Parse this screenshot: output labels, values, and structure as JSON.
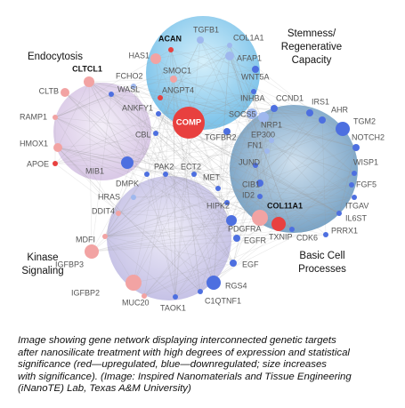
{
  "groups": [
    {
      "lines": [
        "Endocytosis"
      ]
    },
    {
      "lines": [
        "Stemness/",
        "Regenerative",
        "Capacity"
      ]
    },
    {
      "lines": [
        "Kinase",
        "Signaling"
      ]
    },
    {
      "lines": [
        "Basic Cell",
        "Processes"
      ]
    }
  ],
  "nodes": [
    {
      "label": "CLTCL1"
    },
    {
      "label": "FCHO2"
    },
    {
      "label": "CLTB"
    },
    {
      "label": "WASL"
    },
    {
      "label": "RAMP1"
    },
    {
      "label": "ANKFY1"
    },
    {
      "label": "CBL"
    },
    {
      "label": "HMOX1"
    },
    {
      "label": "APOE"
    },
    {
      "label": "MIB1"
    },
    {
      "label": "DMPK"
    },
    {
      "label": "HRAS"
    },
    {
      "label": "DDIT4"
    },
    {
      "label": "MDFI"
    },
    {
      "label": "IGFBP3"
    },
    {
      "label": "IGFBP2"
    },
    {
      "label": "MUC20"
    },
    {
      "label": "TAOK1"
    },
    {
      "label": "C1QTNF1"
    },
    {
      "label": "RGS4"
    },
    {
      "label": "EGF"
    },
    {
      "label": "EGFR"
    },
    {
      "label": "PDGFRA"
    },
    {
      "label": "HIPK2"
    },
    {
      "label": "TXNIP"
    },
    {
      "label": "COL11A1"
    },
    {
      "label": "CDK6"
    },
    {
      "label": "PRRX1"
    },
    {
      "label": "IL6ST"
    },
    {
      "label": "ITGAV"
    },
    {
      "label": "FGF5"
    },
    {
      "label": "WISP1"
    },
    {
      "label": "NOTCH2"
    },
    {
      "label": "TGM2"
    },
    {
      "label": "AHR"
    },
    {
      "label": "IRS1"
    },
    {
      "label": "CCND1"
    },
    {
      "label": "NRP1"
    },
    {
      "label": "EP300"
    },
    {
      "label": "FN1"
    },
    {
      "label": "JUND"
    },
    {
      "label": "CIB1"
    },
    {
      "label": "ID2"
    },
    {
      "label": "MET"
    },
    {
      "label": "ECT2"
    },
    {
      "label": "PAK2"
    },
    {
      "label": "TGFBR2"
    },
    {
      "label": "SOCS5"
    },
    {
      "label": "INHBA"
    },
    {
      "label": "WNT5A"
    },
    {
      "label": "AFAP1"
    },
    {
      "label": "COL1A1"
    },
    {
      "label": "TGFB1"
    },
    {
      "label": "ACAN"
    },
    {
      "label": "HAS1"
    },
    {
      "label": "SMOC1"
    },
    {
      "label": "ANGPT4"
    },
    {
      "label": "COMP"
    }
  ],
  "caption": {
    "lines": [
      "Image showing gene network displaying interconnected genetic targets",
      "after nanosilicate treatment with high degrees of expression and statistical",
      "significance (red—upregulated, blue—downregulated; size increases",
      "with significance). (Image: Inspired Nanomaterials and Tissue Engineering",
      "(iNanoTE) Lab, Texas A&M University)"
    ]
  }
}
